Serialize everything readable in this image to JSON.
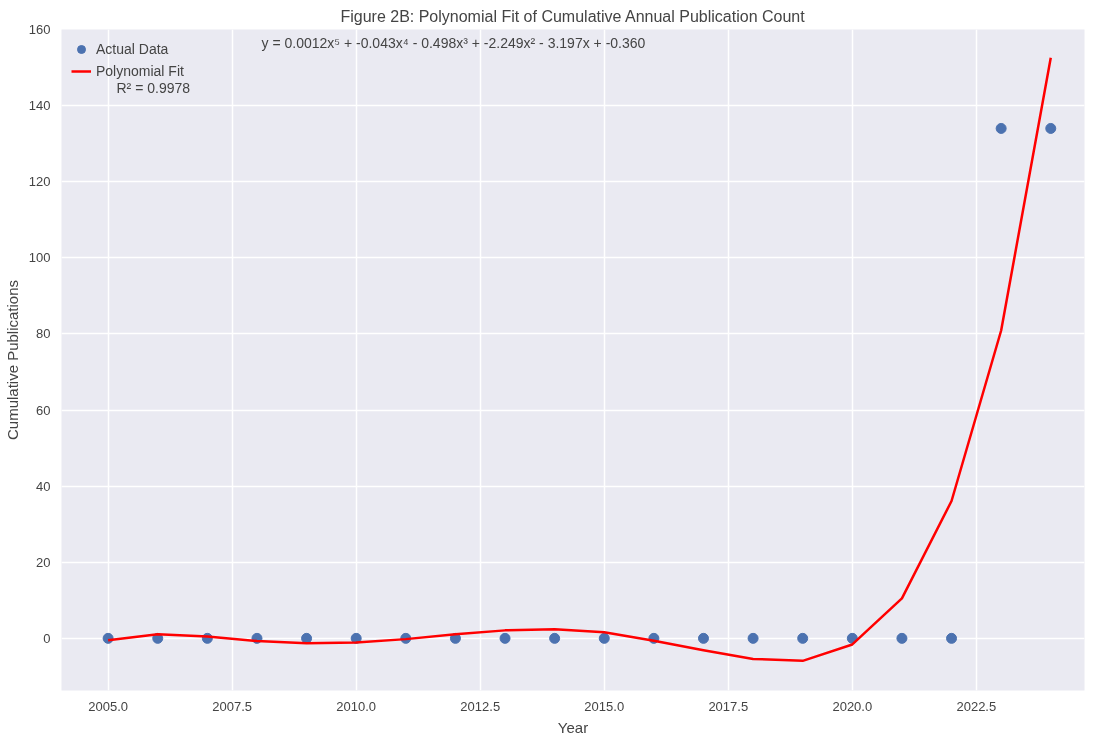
{
  "chart_data": {
    "type": "scatter",
    "title": "Figure 2B: Polynomial Fit of Cumulative Annual Publication Count",
    "xlabel": "Year",
    "ylabel": "Cumulative Publications",
    "series": [
      {
        "name": "Actual Data",
        "color": "#4c72b0",
        "marker": "circle",
        "x": [
          2005,
          2006,
          2007,
          2008,
          2009,
          2010,
          2011,
          2012,
          2013,
          2014,
          2015,
          2016,
          2017,
          2018,
          2019,
          2020,
          2021,
          2022,
          2023,
          2024
        ],
        "values": [
          0,
          0,
          0,
          0,
          0,
          0,
          0,
          0,
          0,
          0,
          0,
          0,
          0,
          0,
          0,
          0,
          0,
          0,
          134,
          134
        ]
      },
      {
        "name": "Polynomial Fit",
        "type": "line",
        "color": "#ff0000",
        "line_style": "solid",
        "x": [
          2005,
          2006,
          2007,
          2008,
          2009,
          2010,
          2011,
          2012,
          2013,
          2014,
          2015,
          2016,
          2017,
          2018,
          2019,
          2020,
          2021,
          2022,
          2023,
          2024
        ],
        "values": [
          -0.5,
          1.1,
          0.5,
          -0.7,
          -1.3,
          -1.1,
          -0.2,
          1.1,
          2.1,
          2.4,
          1.6,
          -0.6,
          -3.1,
          -5.4,
          -5.9,
          -1.6,
          10.5,
          36.1,
          80.9,
          152.6
        ]
      }
    ],
    "annotations": [
      "y = 0.0012x⁵ + -0.043x⁴ - 0.498x³ + -2.249x² - 3.197x + -0.360",
      "R² = 0.9978"
    ],
    "xlim": [
      2004.06,
      2024.68
    ],
    "ylim": [
      -13.7,
      160
    ],
    "xticks": [
      {
        "value": 2005,
        "label": "2005.0"
      },
      {
        "value": 2007.5,
        "label": "2007.5"
      },
      {
        "value": 2010,
        "label": "2010.0"
      },
      {
        "value": 2012.5,
        "label": "2012.5"
      },
      {
        "value": 2015,
        "label": "2015.0"
      },
      {
        "value": 2017.5,
        "label": "2017.5"
      },
      {
        "value": 2020,
        "label": "2020.0"
      },
      {
        "value": 2022.5,
        "label": "2022.5"
      }
    ],
    "yticks": [
      0,
      20,
      40,
      60,
      80,
      100,
      120,
      140,
      160
    ],
    "grid": true,
    "legend": "top left"
  }
}
